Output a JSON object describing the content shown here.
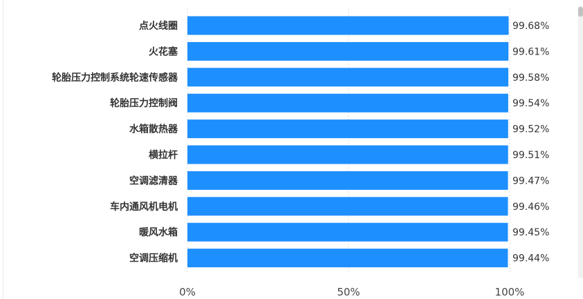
{
  "chart_data": {
    "type": "bar",
    "orientation": "horizontal",
    "categories": [
      "点火线圈",
      "火花塞",
      "轮胎压力控制系统轮速传感器",
      "轮胎压力控制阀",
      "水箱散热器",
      "横拉杆",
      "空调滤清器",
      "车内通风机电机",
      "暖风水箱",
      "空调压缩机"
    ],
    "values": [
      99.68,
      99.61,
      99.58,
      99.54,
      99.52,
      99.51,
      99.47,
      99.46,
      99.45,
      99.44
    ],
    "value_labels": [
      "99.68%",
      "99.61%",
      "99.58%",
      "99.54%",
      "99.52%",
      "99.51%",
      "99.47%",
      "99.46%",
      "99.45%",
      "99.44%"
    ],
    "x_ticks": [
      "0%",
      "50%",
      "100%"
    ],
    "x_tick_values": [
      0,
      50,
      100
    ],
    "xlim": [
      0,
      100
    ],
    "bar_color": "#1e8fff",
    "grid": "vertical-dotted"
  }
}
